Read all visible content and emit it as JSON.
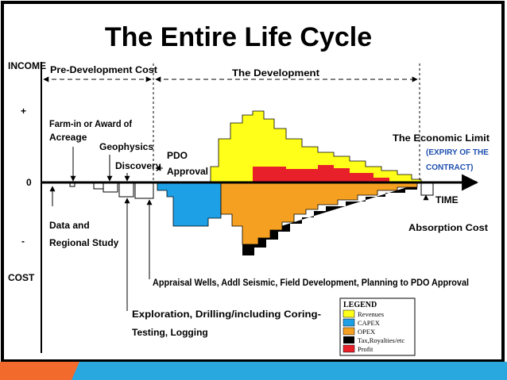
{
  "title": "The Entire Life Cycle",
  "axis": {
    "income": "INCOME",
    "plus": "+",
    "zero": "0",
    "minus": "-",
    "cost": "COST",
    "time": "TIME"
  },
  "phases": {
    "pre_development": "Pre-Development Cost",
    "development": "The Development"
  },
  "annotations": {
    "farm_in": [
      "Farm-in or Award of",
      "Acreage"
    ],
    "geophysics": "Geophysics",
    "discovery": "Discovery",
    "pdo": [
      "PDO",
      "Approval"
    ],
    "economic_limit": "The Economic Limit",
    "expiry": [
      "(EXPIRY OF THE",
      "CONTRACT)"
    ],
    "data_study": [
      "Data and",
      "Regional Study"
    ],
    "absorption": "Absorption Cost",
    "appraisal": "Appraisal Wells, Addl Seismic, Field Development, Planning to PDO Approval",
    "exploration": [
      "Exploration, Drilling/including Coring-",
      "Testing, Logging"
    ]
  },
  "legend": {
    "title": "LEGEND",
    "items": [
      "Revenues",
      "CAPEX",
      "OPEX",
      "Tax,Royalties/etc",
      "Profit"
    ]
  }
}
